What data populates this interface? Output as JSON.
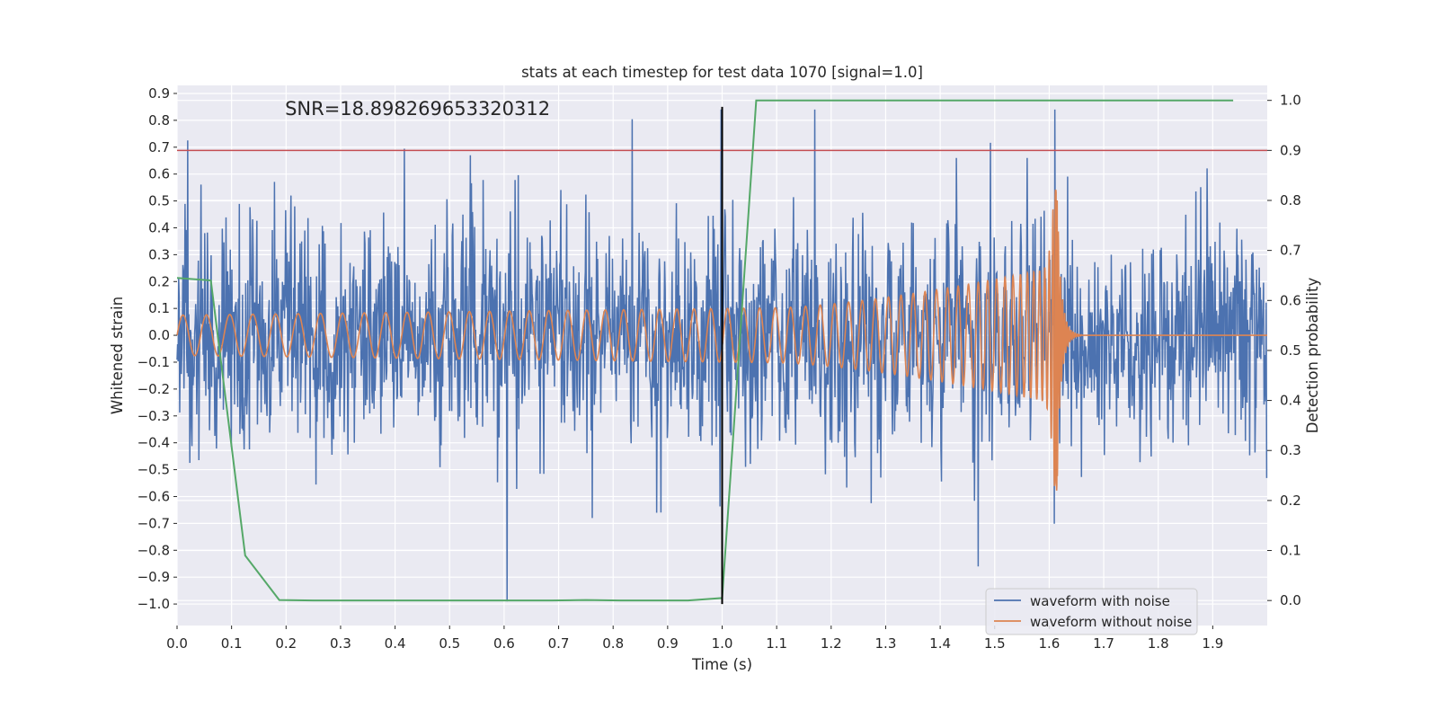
{
  "chart_data": {
    "type": "line",
    "title": "stats at each timestep for test data 1070 [signal=1.0]",
    "xlabel": "Time (s)",
    "ylabel": "Whitened strain",
    "y2label": "Detection probability",
    "annotation": "SNR=18.898269653320312",
    "xlim": [
      0.0,
      2.0
    ],
    "ylim": [
      -1.08,
      0.93
    ],
    "y2lim": [
      -0.05,
      1.03
    ],
    "x_ticks": [
      "0.0",
      "0.1",
      "0.2",
      "0.3",
      "0.4",
      "0.5",
      "0.6",
      "0.7",
      "0.8",
      "0.9",
      "1.0",
      "1.1",
      "1.2",
      "1.3",
      "1.4",
      "1.5",
      "1.6",
      "1.7",
      "1.8",
      "1.9"
    ],
    "y_ticks": [
      "0.9",
      "0.8",
      "0.7",
      "0.6",
      "0.5",
      "0.4",
      "0.3",
      "0.2",
      "0.1",
      "0.0",
      "-0.1",
      "-0.2",
      "-0.3",
      "-0.4",
      "-0.5",
      "-0.6",
      "-0.7",
      "-0.8",
      "-0.9",
      "-1.0"
    ],
    "y2_ticks": [
      "1.0",
      "0.9",
      "0.8",
      "0.7",
      "0.6",
      "0.5",
      "0.4",
      "0.3",
      "0.2",
      "0.1",
      "0.0"
    ],
    "legend": {
      "placement": "lower-right",
      "entries": [
        "waveform with noise",
        "waveform without noise"
      ]
    },
    "threshold_y2": 0.9,
    "event_time": 1.0,
    "event_line_range": [
      -1.0,
      0.85
    ],
    "noise_series": {
      "name": "waveform with noise",
      "color": "#4c72b0",
      "x_range": [
        0.0,
        2.0
      ],
      "n_samples": 2048,
      "baseline_std": 0.2,
      "notable_peaks": [
        {
          "x": 0.538,
          "y": 0.67
        },
        {
          "x": 0.605,
          "y": -0.99
        },
        {
          "x": 0.998,
          "y": 0.84
        },
        {
          "x": 1.17,
          "y": 0.84
        },
        {
          "x": 1.61,
          "y": 0.84
        },
        {
          "x": 1.47,
          "y": -0.86
        },
        {
          "x": 1.43,
          "y": 0.66
        },
        {
          "x": 1.56,
          "y": 0.66
        },
        {
          "x": 0.762,
          "y": -0.68
        }
      ]
    },
    "clean_series": {
      "name": "waveform without noise",
      "color": "#dd8452",
      "model": "chirp",
      "start_frequency_hz": 23,
      "merger_time": 1.615,
      "initial_amplitude": 0.075,
      "peak_amplitude": 0.54,
      "min_value": -0.58,
      "ringdown_end": 1.66
    },
    "probability_series": {
      "name": "detection probability",
      "color": "#55a868",
      "x": [
        0.0,
        0.062,
        0.125,
        0.1875,
        0.25,
        0.3125,
        0.375,
        0.4375,
        0.5,
        0.5625,
        0.625,
        0.6875,
        0.75,
        0.8125,
        0.875,
        0.9375,
        1.0,
        1.0625,
        1.125,
        1.1875,
        1.25,
        1.3125,
        1.375,
        1.4375,
        1.5,
        1.5625,
        1.625,
        1.6875,
        1.75,
        1.8125,
        1.875,
        1.9375
      ],
      "y": [
        0.645,
        0.64,
        0.09,
        0.001,
        0.0,
        0.0,
        0.0,
        0.0,
        0.0,
        0.0,
        0.0,
        0.0,
        0.001,
        0.0,
        0.0,
        0.0,
        0.005,
        1.0,
        1.0,
        1.0,
        1.0,
        1.0,
        1.0,
        1.0,
        1.0,
        1.0,
        1.0,
        1.0,
        1.0,
        1.0,
        1.0,
        1.0
      ]
    },
    "colors": {
      "background": "#eaeaf2",
      "grid": "#ffffff",
      "threshold": "#c44e52",
      "event": "#000000"
    }
  }
}
